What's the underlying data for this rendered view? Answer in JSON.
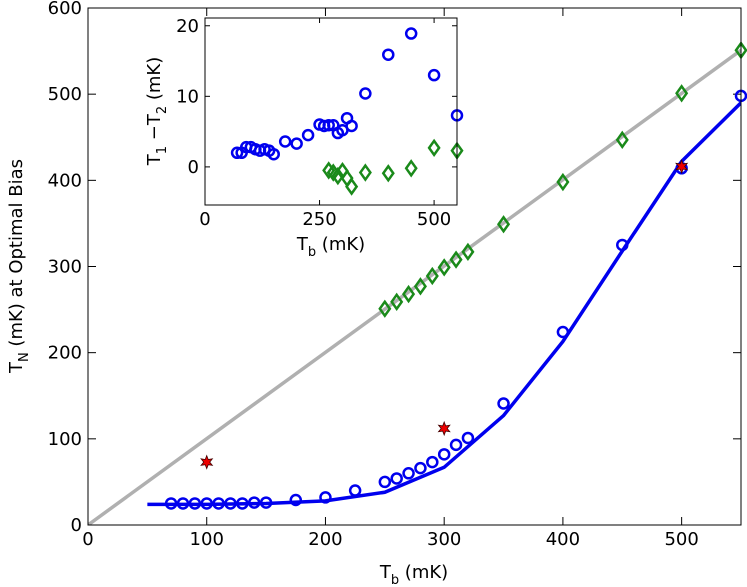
{
  "chart_data": [
    {
      "type": "line",
      "xlabel": {
        "main": "T",
        "sub": "b",
        "rest": " (mK)"
      },
      "ylabel": {
        "main": "T",
        "sub": "N",
        "rest": " (mK) at Optimal Bias"
      },
      "xlim": [
        0,
        550
      ],
      "ylim": [
        0,
        600
      ],
      "xticks": [
        0,
        100,
        200,
        300,
        400,
        500
      ],
      "yticks": [
        0,
        100,
        200,
        300,
        400,
        500,
        600
      ],
      "series": [
        {
          "color": "#b0b0b0",
          "marker": "none",
          "line": true,
          "x": [
            0,
            550
          ],
          "values": [
            0,
            551
          ]
        },
        {
          "color": "#0000ee",
          "marker": "none",
          "line": true,
          "x": [
            50,
            100,
            150,
            200,
            250,
            300,
            350,
            400,
            450,
            500,
            550
          ],
          "values": [
            24,
            24,
            25,
            28,
            38,
            67,
            127,
            213,
            318,
            422,
            490
          ]
        },
        {
          "color": "#1a8a1a",
          "marker": "diamond",
          "line": false,
          "x": [
            250,
            260,
            270,
            280,
            290,
            300,
            310,
            320,
            350,
            400,
            450,
            500,
            550
          ],
          "values": [
            251,
            259,
            268,
            277,
            289,
            299,
            308,
            317,
            349,
            398,
            447,
            501,
            551
          ]
        },
        {
          "color": "#0000ee",
          "marker": "circle",
          "line": false,
          "x": [
            70,
            80,
            90,
            100,
            110,
            120,
            130,
            140,
            150,
            175,
            200,
            225,
            250,
            260,
            270,
            280,
            290,
            300,
            310,
            320,
            350,
            400,
            450,
            500,
            550
          ],
          "values": [
            25,
            25,
            25,
            25,
            25,
            25,
            25,
            26,
            26,
            29,
            32,
            40,
            50,
            54,
            60,
            66,
            73,
            82,
            93,
            101,
            141,
            224,
            325,
            414,
            498
          ]
        },
        {
          "color": "#ee0000",
          "marker": "star",
          "line": false,
          "x": [
            100,
            300,
            500
          ],
          "values": [
            73,
            112,
            416
          ]
        }
      ]
    },
    {
      "type": "line",
      "xlabel": {
        "main": "T",
        "sub": "b",
        "rest": " (mK)"
      },
      "ylabel": {
        "main": "T",
        "sub": "1",
        "mid": " −T",
        "sub2": "2",
        "rest": " (mK)"
      },
      "xlim": [
        0,
        550
      ],
      "ylim": [
        -5.4,
        21.1
      ],
      "xticks": [
        0,
        250,
        500
      ],
      "yticks": [
        0,
        10,
        20
      ],
      "series": [
        {
          "color": "#0000ee",
          "marker": "circle",
          "line": false,
          "x": [
            70,
            80,
            90,
            100,
            110,
            120,
            130,
            140,
            150,
            175,
            200,
            225,
            250,
            260,
            270,
            280,
            290,
            300,
            310,
            320,
            350,
            400,
            450,
            500,
            550
          ],
          "values": [
            2,
            2,
            2.8,
            2.8,
            2.5,
            2.3,
            2.5,
            2.3,
            1.8,
            3.6,
            3.3,
            4.5,
            6,
            5.8,
            5.9,
            5.9,
            4.8,
            5.2,
            6.9,
            5.8,
            10.4,
            15.9,
            18.9,
            13,
            7.3
          ]
        },
        {
          "color": "#1a8a1a",
          "marker": "diamond",
          "line": false,
          "x": [
            270,
            280,
            290,
            300,
            310,
            320,
            350,
            400,
            450,
            500,
            550
          ],
          "values": [
            -0.5,
            -0.8,
            -1.3,
            -0.6,
            -1.6,
            -2.8,
            -0.8,
            -0.9,
            -0.2,
            2.7,
            2.3
          ]
        }
      ]
    }
  ]
}
